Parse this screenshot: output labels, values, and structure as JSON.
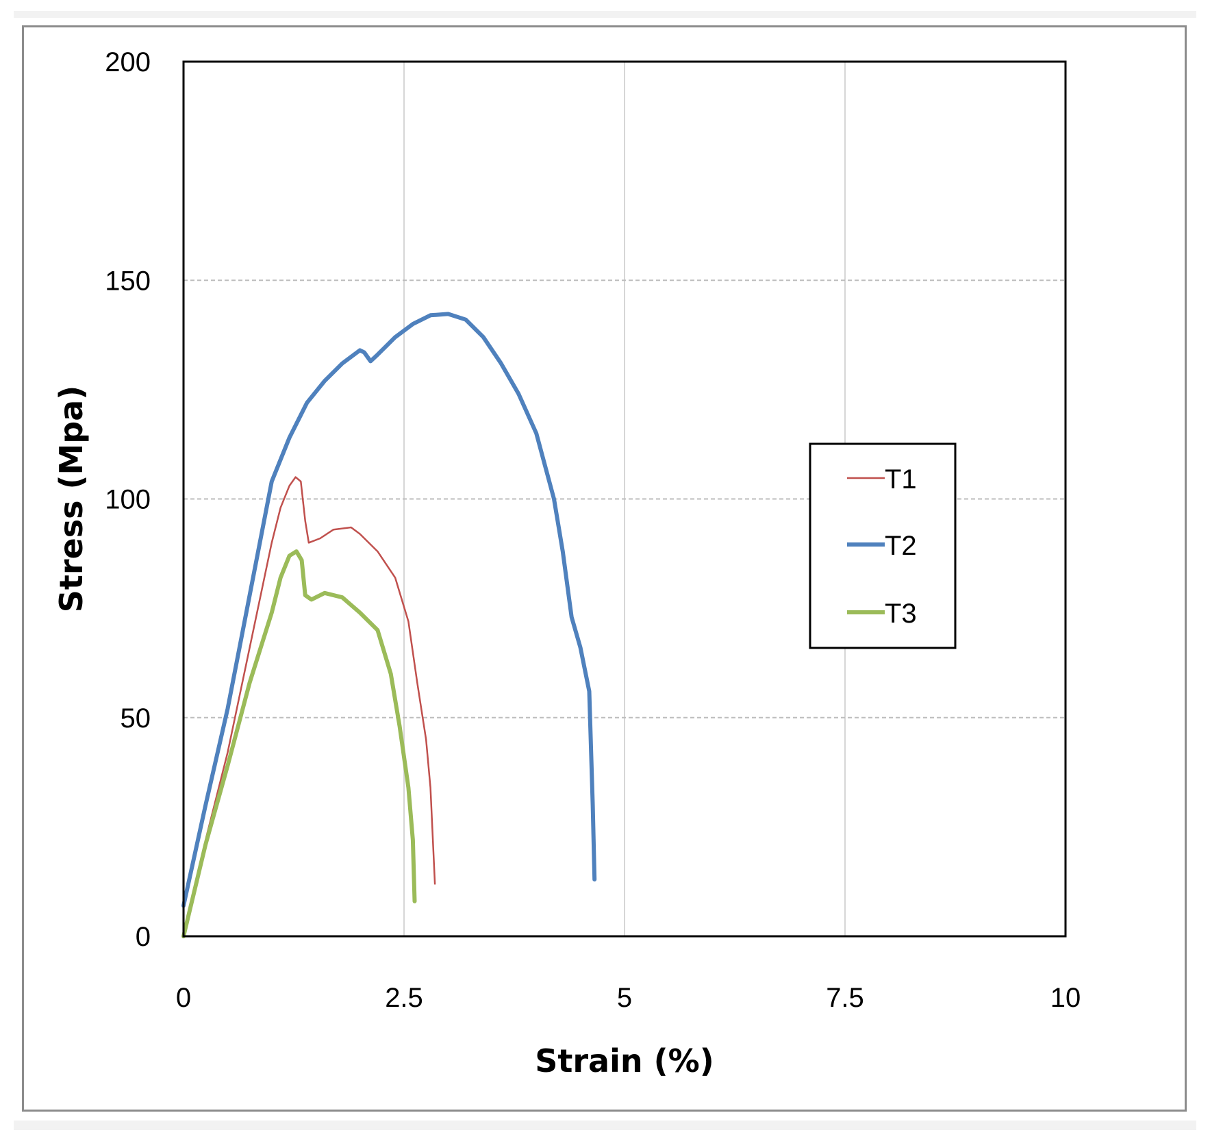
{
  "chart_data": {
    "type": "line",
    "xlabel": "Strain (%)",
    "ylabel": "Stress (Mpa)",
    "xlim": [
      0,
      10
    ],
    "ylim": [
      0,
      200
    ],
    "xticks": [
      "0",
      "2.5",
      "5",
      "7.5",
      "10"
    ],
    "yticks": [
      "0",
      "50",
      "100",
      "150",
      "200"
    ],
    "grid": true,
    "legend_position": "right",
    "series": [
      {
        "name": "T1",
        "color": "#c0504d",
        "width": "thin",
        "points": [
          [
            0,
            1
          ],
          [
            0.25,
            22
          ],
          [
            0.5,
            42
          ],
          [
            0.75,
            66
          ],
          [
            1.0,
            90
          ],
          [
            1.1,
            98
          ],
          [
            1.2,
            103
          ],
          [
            1.27,
            105
          ],
          [
            1.33,
            104
          ],
          [
            1.38,
            95
          ],
          [
            1.42,
            90
          ],
          [
            1.55,
            91
          ],
          [
            1.7,
            93
          ],
          [
            1.9,
            93.5
          ],
          [
            2.0,
            92
          ],
          [
            2.2,
            88
          ],
          [
            2.4,
            82
          ],
          [
            2.55,
            72
          ],
          [
            2.65,
            58
          ],
          [
            2.75,
            45
          ],
          [
            2.8,
            34
          ],
          [
            2.85,
            12
          ]
        ]
      },
      {
        "name": "T2",
        "color": "#4f81bd",
        "width": "thick",
        "points": [
          [
            0,
            7
          ],
          [
            0.25,
            30
          ],
          [
            0.5,
            52
          ],
          [
            0.75,
            78
          ],
          [
            1.0,
            104
          ],
          [
            1.2,
            114
          ],
          [
            1.4,
            122
          ],
          [
            1.6,
            127
          ],
          [
            1.8,
            131
          ],
          [
            2.0,
            134
          ],
          [
            2.05,
            133.5
          ],
          [
            2.12,
            131.5
          ],
          [
            2.2,
            133
          ],
          [
            2.4,
            137
          ],
          [
            2.6,
            140
          ],
          [
            2.8,
            142
          ],
          [
            3.0,
            142.3
          ],
          [
            3.2,
            141
          ],
          [
            3.4,
            137
          ],
          [
            3.6,
            131
          ],
          [
            3.8,
            124
          ],
          [
            4.0,
            115
          ],
          [
            4.2,
            100
          ],
          [
            4.3,
            88
          ],
          [
            4.4,
            73
          ],
          [
            4.5,
            66
          ],
          [
            4.6,
            56
          ],
          [
            4.64,
            30
          ],
          [
            4.66,
            13
          ]
        ]
      },
      {
        "name": "T3",
        "color": "#9bbb59",
        "width": "thick",
        "points": [
          [
            0,
            0
          ],
          [
            0.25,
            21
          ],
          [
            0.5,
            39
          ],
          [
            0.75,
            58
          ],
          [
            1.0,
            74
          ],
          [
            1.1,
            82
          ],
          [
            1.2,
            87
          ],
          [
            1.28,
            88
          ],
          [
            1.34,
            86
          ],
          [
            1.38,
            78
          ],
          [
            1.45,
            77
          ],
          [
            1.6,
            78.5
          ],
          [
            1.8,
            77.5
          ],
          [
            2.0,
            74
          ],
          [
            2.2,
            70
          ],
          [
            2.35,
            60
          ],
          [
            2.45,
            48
          ],
          [
            2.55,
            34
          ],
          [
            2.6,
            22
          ],
          [
            2.62,
            8
          ]
        ]
      }
    ]
  }
}
